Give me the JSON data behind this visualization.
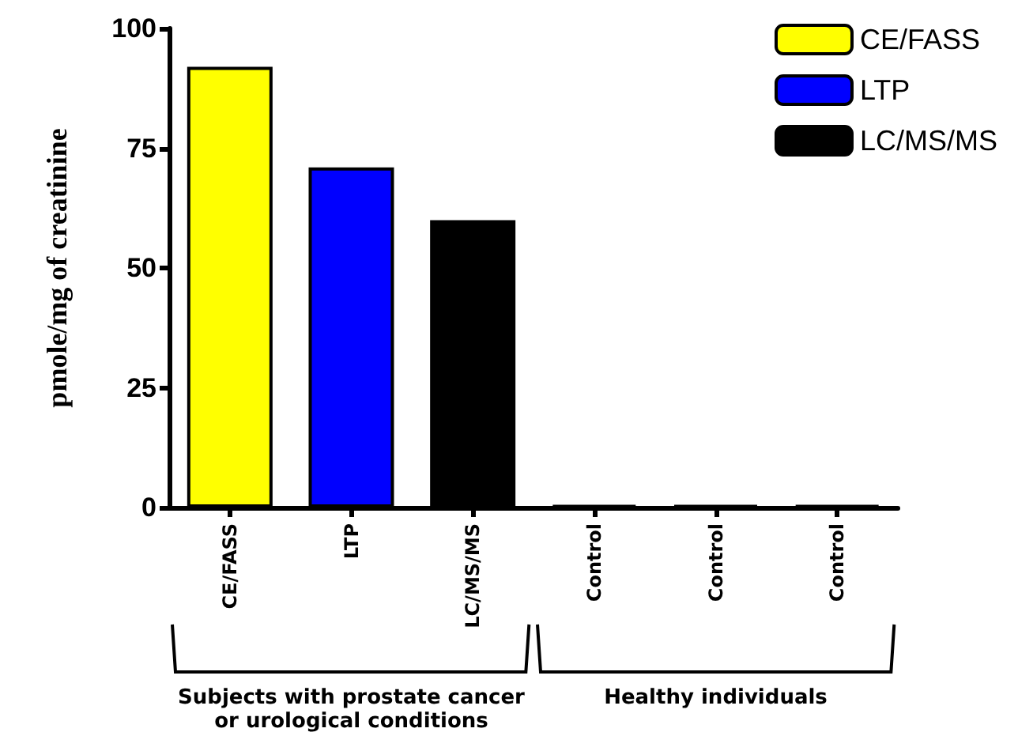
{
  "chart_data": {
    "type": "bar",
    "ylabel": "pmole/mg of creatinine",
    "categories": [
      "CE/FASS",
      "LTP",
      "LC/MS/MS",
      "Control",
      "Control",
      "Control"
    ],
    "series": [
      {
        "name": "CE/FASS",
        "color": "#ffff00",
        "values": [
          92,
          null,
          null,
          null,
          null,
          null
        ]
      },
      {
        "name": "LTP",
        "color": "#0000ff",
        "values": [
          null,
          71,
          null,
          null,
          null,
          null
        ]
      },
      {
        "name": "LC/MS/MS",
        "color": "#000000",
        "values": [
          null,
          null,
          60,
          null,
          null,
          null
        ]
      },
      {
        "color": "#000000",
        "values": [
          null,
          null,
          null,
          0.5,
          0.5,
          0.5
        ]
      }
    ],
    "ylim": [
      0,
      100
    ],
    "yticks": [
      0,
      25,
      50,
      75,
      100
    ],
    "grid": false,
    "legend": "top right",
    "annotations": [
      "Subjects with prostate cancer\nor urological conditions",
      "Healthy individuals"
    ]
  }
}
